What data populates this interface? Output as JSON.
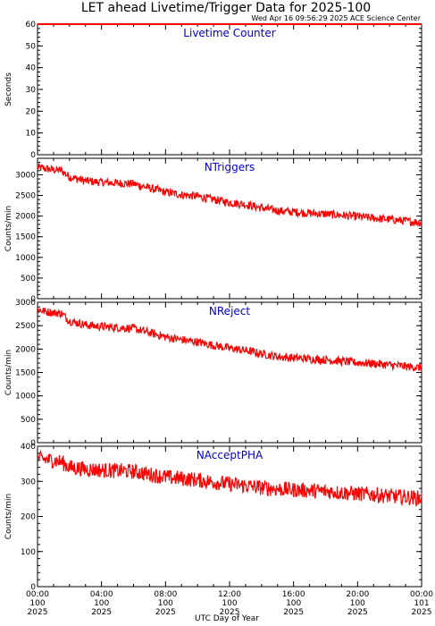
{
  "figure": {
    "title": "LET ahead Livetime/Trigger Data for 2025-100",
    "subtitle": "Wed Apr 16 09:56:29 2025 ACE Science Center",
    "xlabel": "UTC Day of Year",
    "line_color": "#ff0000",
    "label_color": "#0000cc"
  },
  "chart_data": [
    {
      "type": "line",
      "title": "Livetime Counter",
      "ylabel": "Seconds",
      "ylim": [
        0,
        60
      ],
      "yticks": [
        0,
        10,
        20,
        30,
        40,
        50,
        60
      ],
      "xlim": [
        "2025-100 00:00",
        "2025-101 00:00"
      ],
      "series": [
        {
          "x": [
            "00:00",
            "24:00"
          ],
          "values": [
            60,
            60
          ]
        }
      ]
    },
    {
      "type": "line",
      "title": "NTriggers",
      "ylabel": "Counts/min",
      "ylim": [
        0,
        3400
      ],
      "yticks": [
        0,
        500,
        1000,
        1500,
        2000,
        2500,
        3000
      ],
      "xlim": [
        "2025-100 00:00",
        "2025-101 00:00"
      ],
      "series": [
        {
          "x": [
            "00:00",
            "00:30",
            "01:00",
            "01:30",
            "02:00",
            "03:00",
            "04:00",
            "05:00",
            "06:00",
            "07:00",
            "08:00",
            "09:00",
            "10:00",
            "11:00",
            "12:00",
            "13:00",
            "14:00",
            "15:00",
            "16:00",
            "17:00",
            "18:00",
            "19:00",
            "20:00",
            "21:00",
            "22:00",
            "23:00",
            "24:00"
          ],
          "values": [
            3180,
            3150,
            3120,
            3100,
            2950,
            2850,
            2820,
            2800,
            2780,
            2680,
            2580,
            2520,
            2480,
            2400,
            2330,
            2280,
            2200,
            2130,
            2100,
            2070,
            2050,
            2020,
            1990,
            1950,
            1920,
            1880,
            1840
          ]
        }
      ]
    },
    {
      "type": "line",
      "title": "NReject",
      "ylabel": "Counts/min",
      "ylim": [
        0,
        3000
      ],
      "yticks": [
        0,
        500,
        1000,
        1500,
        2000,
        2500,
        3000
      ],
      "xlim": [
        "2025-100 00:00",
        "2025-101 00:00"
      ],
      "series": [
        {
          "x": [
            "00:00",
            "00:30",
            "01:00",
            "01:30",
            "02:00",
            "03:00",
            "04:00",
            "05:00",
            "06:00",
            "07:00",
            "08:00",
            "09:00",
            "10:00",
            "11:00",
            "12:00",
            "13:00",
            "14:00",
            "15:00",
            "16:00",
            "17:00",
            "18:00",
            "19:00",
            "20:00",
            "21:00",
            "22:00",
            "23:00",
            "24:00"
          ],
          "values": [
            2850,
            2800,
            2780,
            2760,
            2600,
            2520,
            2480,
            2460,
            2440,
            2350,
            2260,
            2200,
            2150,
            2080,
            2020,
            1970,
            1900,
            1840,
            1810,
            1790,
            1770,
            1740,
            1710,
            1690,
            1660,
            1630,
            1600
          ]
        }
      ]
    },
    {
      "type": "line",
      "title": "NAcceptPHA",
      "ylabel": "Counts/min",
      "ylim": [
        0,
        400
      ],
      "yticks": [
        0,
        100,
        200,
        300,
        400
      ],
      "xlim": [
        "2025-100 00:00",
        "2025-101 00:00"
      ],
      "series": [
        {
          "x": [
            "00:00",
            "00:30",
            "01:00",
            "01:30",
            "02:00",
            "03:00",
            "04:00",
            "05:00",
            "06:00",
            "07:00",
            "08:00",
            "09:00",
            "10:00",
            "11:00",
            "12:00",
            "13:00",
            "14:00",
            "15:00",
            "16:00",
            "17:00",
            "18:00",
            "19:00",
            "20:00",
            "21:00",
            "22:00",
            "23:00",
            "24:00"
          ],
          "values": [
            365,
            362,
            360,
            355,
            340,
            335,
            332,
            330,
            328,
            320,
            312,
            308,
            304,
            298,
            292,
            288,
            282,
            278,
            276,
            274,
            272,
            268,
            265,
            262,
            258,
            255,
            252
          ]
        }
      ]
    }
  ],
  "xaxis": {
    "ticks": [
      {
        "time": "00:00",
        "doy": "100",
        "year": "2025"
      },
      {
        "time": "04:00",
        "doy": "100",
        "year": "2025"
      },
      {
        "time": "08:00",
        "doy": "100",
        "year": "2025"
      },
      {
        "time": "12:00",
        "doy": "100",
        "year": "2025"
      },
      {
        "time": "16:00",
        "doy": "100",
        "year": "2025"
      },
      {
        "time": "20:00",
        "doy": "100",
        "year": "2025"
      },
      {
        "time": "00:00",
        "doy": "101",
        "year": "2025"
      }
    ]
  }
}
